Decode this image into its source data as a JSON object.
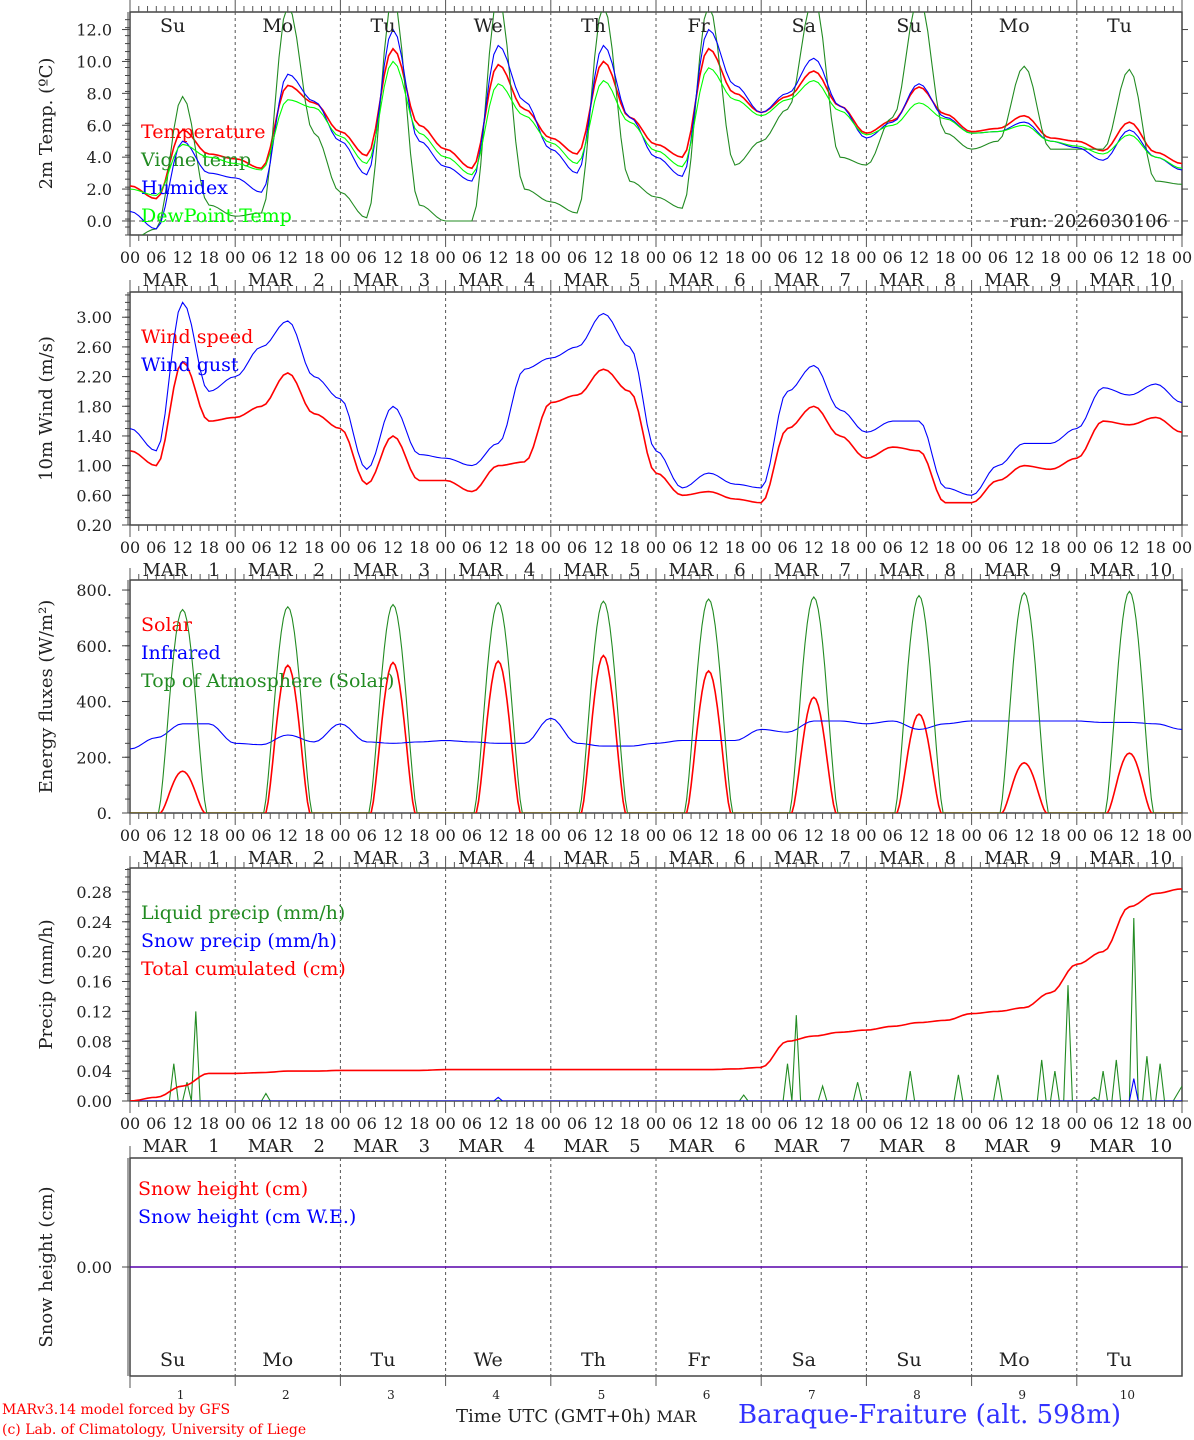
{
  "footer": {
    "model": "MARv3.14 model forced by GFS",
    "copyright": "(c) Lab. of Climatology, University of Liege",
    "time_label": "Time UTC (GMT+0h)",
    "month": "MAR",
    "station": "Baraque-Fraiture (alt. 598m)"
  },
  "days": {
    "names": [
      "Su",
      "Mo",
      "Tu",
      "We",
      "Th",
      "Fr",
      "Sa",
      "Su",
      "Mo",
      "Tu"
    ],
    "weekend": [
      true,
      false,
      false,
      false,
      false,
      false,
      true,
      true,
      false,
      false
    ],
    "numbers": [
      "1",
      "2",
      "3",
      "4",
      "5",
      "6",
      "7",
      "8",
      "9",
      "10"
    ],
    "hour_labels": [
      "00",
      "06",
      "12",
      "18"
    ],
    "month": "MAR",
    "end_hour_label": "00"
  },
  "colors": {
    "red": "#ff0000",
    "green": "#228b22",
    "blue": "#0000ff",
    "lime": "#00ff00",
    "weekend": "#ff0000"
  },
  "chart_data": [
    {
      "type": "line",
      "id": "temp",
      "ylabel": "2m Temp. (ºC)",
      "ylim": [
        -0.88,
        13.1
      ],
      "yticks": [
        0,
        2,
        4,
        6,
        8,
        10,
        12
      ],
      "ytick_labels": [
        "0.0",
        "2.0",
        "4.0",
        "6.0",
        "8.0",
        "10.0",
        "12.0"
      ],
      "annotation": "run: 2026030106",
      "x_hours_step": 6,
      "series": [
        {
          "name": "Temperature",
          "color": "#ff0000",
          "values": [
            2.2,
            1.4,
            5.7,
            4.2,
            3.9,
            3.3,
            8.5,
            7.4,
            5.6,
            4.1,
            10.8,
            6.0,
            4.5,
            3.3,
            9.8,
            7.0,
            5.2,
            4.2,
            10.0,
            6.5,
            4.8,
            4.0,
            10.8,
            8.0,
            6.8,
            7.8,
            9.4,
            7.2,
            5.5,
            6.3,
            8.4,
            6.7,
            5.6,
            5.8,
            6.6,
            5.2,
            5.0,
            4.4,
            6.2,
            4.3,
            3.6
          ]
        },
        {
          "name": "Vigne temp",
          "color": "#228b22",
          "values": [
            -1.2,
            -0.5,
            7.8,
            1.0,
            0.3,
            0.5,
            13.5,
            5.5,
            1.8,
            0.2,
            14,
            1.0,
            0.0,
            0.0,
            14,
            2.0,
            1.2,
            0.5,
            13.5,
            2.5,
            1.5,
            0.8,
            13.5,
            3.5,
            5.0,
            7.0,
            14,
            4.0,
            3.5,
            6.5,
            14,
            5.5,
            4.5,
            5.0,
            9.7,
            4.5,
            4.5,
            4.5,
            9.5,
            2.5,
            2.3
          ]
        },
        {
          "name": "Humidex",
          "color": "#0000ff",
          "values": [
            0.6,
            -0.5,
            5.0,
            3.0,
            2.7,
            1.8,
            9.2,
            7.5,
            5.0,
            2.9,
            12.0,
            5.0,
            3.4,
            2.5,
            11.0,
            7.5,
            4.5,
            3.0,
            11.0,
            6.5,
            4.0,
            2.8,
            12.0,
            8.5,
            6.8,
            8.0,
            10.2,
            7.2,
            5.2,
            6.2,
            8.6,
            6.5,
            5.5,
            5.6,
            6.2,
            5.0,
            4.6,
            3.8,
            5.7,
            4.0,
            3.2
          ]
        },
        {
          "name": "DewPoint Temp",
          "color": "#00ff00",
          "values": [
            2.0,
            1.6,
            4.8,
            4.0,
            3.6,
            3.2,
            7.6,
            7.1,
            5.3,
            3.6,
            10.0,
            5.5,
            4.0,
            2.9,
            8.6,
            6.6,
            4.9,
            3.6,
            8.8,
            6.2,
            4.4,
            3.4,
            9.6,
            7.6,
            6.6,
            7.6,
            8.8,
            6.9,
            5.4,
            6.0,
            7.4,
            6.4,
            5.5,
            5.6,
            6.0,
            5.0,
            4.7,
            4.2,
            5.4,
            4.0,
            3.3
          ]
        }
      ]
    },
    {
      "type": "line",
      "id": "wind",
      "ylabel": "10m Wind (m/s)",
      "ylim": [
        0.2,
        3.34
      ],
      "yticks": [
        0.2,
        0.6,
        1.0,
        1.4,
        1.8,
        2.2,
        2.6,
        3.0
      ],
      "ytick_labels": [
        "0.20",
        "0.60",
        "1.00",
        "1.40",
        "1.80",
        "2.20",
        "2.60",
        "3.00"
      ],
      "x_hours_step": 6,
      "series": [
        {
          "name": "Wind speed",
          "color": "#ff0000",
          "values": [
            1.2,
            1.0,
            2.4,
            1.6,
            1.65,
            1.8,
            2.25,
            1.7,
            1.5,
            0.75,
            1.4,
            0.8,
            0.8,
            0.65,
            1.0,
            1.05,
            1.85,
            1.95,
            2.3,
            2.0,
            0.9,
            0.6,
            0.65,
            0.55,
            0.5,
            1.5,
            1.8,
            1.4,
            1.1,
            1.25,
            1.2,
            0.5,
            0.5,
            0.8,
            1.0,
            0.95,
            1.1,
            1.6,
            1.55,
            1.65,
            1.45
          ]
        },
        {
          "name": "Wind gust",
          "color": "#0000ff",
          "values": [
            1.5,
            1.2,
            3.2,
            2.0,
            2.2,
            2.6,
            2.95,
            2.2,
            1.9,
            0.95,
            1.8,
            1.15,
            1.1,
            1.0,
            1.3,
            2.3,
            2.45,
            2.6,
            3.05,
            2.6,
            1.2,
            0.7,
            0.9,
            0.75,
            0.7,
            2.0,
            2.35,
            1.75,
            1.45,
            1.6,
            1.6,
            0.7,
            0.6,
            1.0,
            1.3,
            1.3,
            1.5,
            2.05,
            1.95,
            2.1,
            1.85
          ]
        }
      ]
    },
    {
      "type": "line",
      "id": "energy",
      "ylabel": "Energy fluxes (W/m²)",
      "ylim": [
        0,
        836
      ],
      "yticks": [
        0,
        200,
        400,
        600,
        800
      ],
      "ytick_labels": [
        "0.",
        "200.",
        "400.",
        "600.",
        "800."
      ],
      "series": [
        {
          "name": "Solar",
          "color": "#ff0000",
          "daily_peak": [
            150,
            530,
            540,
            545,
            565,
            510,
            415,
            355,
            180,
            215
          ]
        },
        {
          "name": "Infrared",
          "color": "#0000ff",
          "x_hours_step": 6,
          "values": [
            230,
            270,
            320,
            320,
            250,
            245,
            280,
            255,
            320,
            255,
            250,
            255,
            260,
            255,
            250,
            250,
            340,
            250,
            240,
            240,
            250,
            260,
            260,
            260,
            300,
            290,
            330,
            330,
            320,
            330,
            300,
            320,
            330,
            330,
            330,
            330,
            330,
            325,
            325,
            320,
            300
          ]
        },
        {
          "name": "Top of Atmosphere (Solar)",
          "color": "#228b22",
          "daily_peak": [
            730,
            740,
            748,
            755,
            760,
            768,
            775,
            780,
            790,
            795
          ]
        }
      ]
    },
    {
      "type": "line",
      "id": "precip",
      "ylabel": "Precip (mm/h)",
      "ylim": [
        0,
        0.312
      ],
      "yticks": [
        0,
        0.04,
        0.08,
        0.12,
        0.16,
        0.2,
        0.24,
        0.28
      ],
      "ytick_labels": [
        "0.00",
        "0.04",
        "0.08",
        "0.12",
        "0.16",
        "0.20",
        "0.24",
        "0.28"
      ],
      "series": [
        {
          "name": "Liquid precip (mm/h)",
          "color": "#228b22",
          "spikes_hour_value": [
            [
              10,
              0.05
            ],
            [
              13,
              0.025
            ],
            [
              15,
              0.12
            ],
            [
              31,
              0.01
            ],
            [
              140,
              0.008
            ],
            [
              150,
              0.05
            ],
            [
              152,
              0.115
            ],
            [
              158,
              0.02
            ],
            [
              166,
              0.025
            ],
            [
              178,
              0.04
            ],
            [
              189,
              0.035
            ],
            [
              198,
              0.035
            ],
            [
              208,
              0.055
            ],
            [
              211,
              0.04
            ],
            [
              214,
              0.155
            ],
            [
              220,
              0.005
            ],
            [
              222,
              0.04
            ],
            [
              225,
              0.055
            ],
            [
              229,
              0.245
            ],
            [
              232,
              0.06
            ],
            [
              235,
              0.05
            ],
            [
              239,
              0.01
            ],
            [
              240,
              0.02
            ]
          ]
        },
        {
          "name": "Snow precip (mm/h)",
          "color": "#0000ff",
          "spikes_hour_value": [
            [
              84,
              0.005
            ],
            [
              229,
              0.03
            ]
          ]
        },
        {
          "name": "Total cumulated (cm)",
          "color": "#ff0000",
          "x_hours_step": 6,
          "values": [
            0,
            0.005,
            0.02,
            0.037,
            0.037,
            0.038,
            0.04,
            0.04,
            0.041,
            0.041,
            0.041,
            0.041,
            0.042,
            0.042,
            0.042,
            0.042,
            0.042,
            0.042,
            0.042,
            0.042,
            0.042,
            0.042,
            0.042,
            0.043,
            0.045,
            0.08,
            0.087,
            0.092,
            0.095,
            0.1,
            0.105,
            0.108,
            0.117,
            0.12,
            0.125,
            0.145,
            0.183,
            0.2,
            0.26,
            0.278,
            0.284
          ]
        }
      ]
    },
    {
      "type": "line",
      "id": "snow",
      "ylabel": "Snow height (cm)",
      "ylim": [
        -1,
        1
      ],
      "yticks": [
        0
      ],
      "ytick_labels": [
        "0.00"
      ],
      "series": [
        {
          "name": "Snow height (cm)",
          "color": "#ff0000",
          "x_hours_step": 240,
          "values": [
            0,
            0
          ]
        },
        {
          "name": "Snow height (cm W.E.)",
          "color": "#0000ff",
          "x_hours_step": 240,
          "values": [
            0,
            0
          ]
        }
      ]
    }
  ]
}
